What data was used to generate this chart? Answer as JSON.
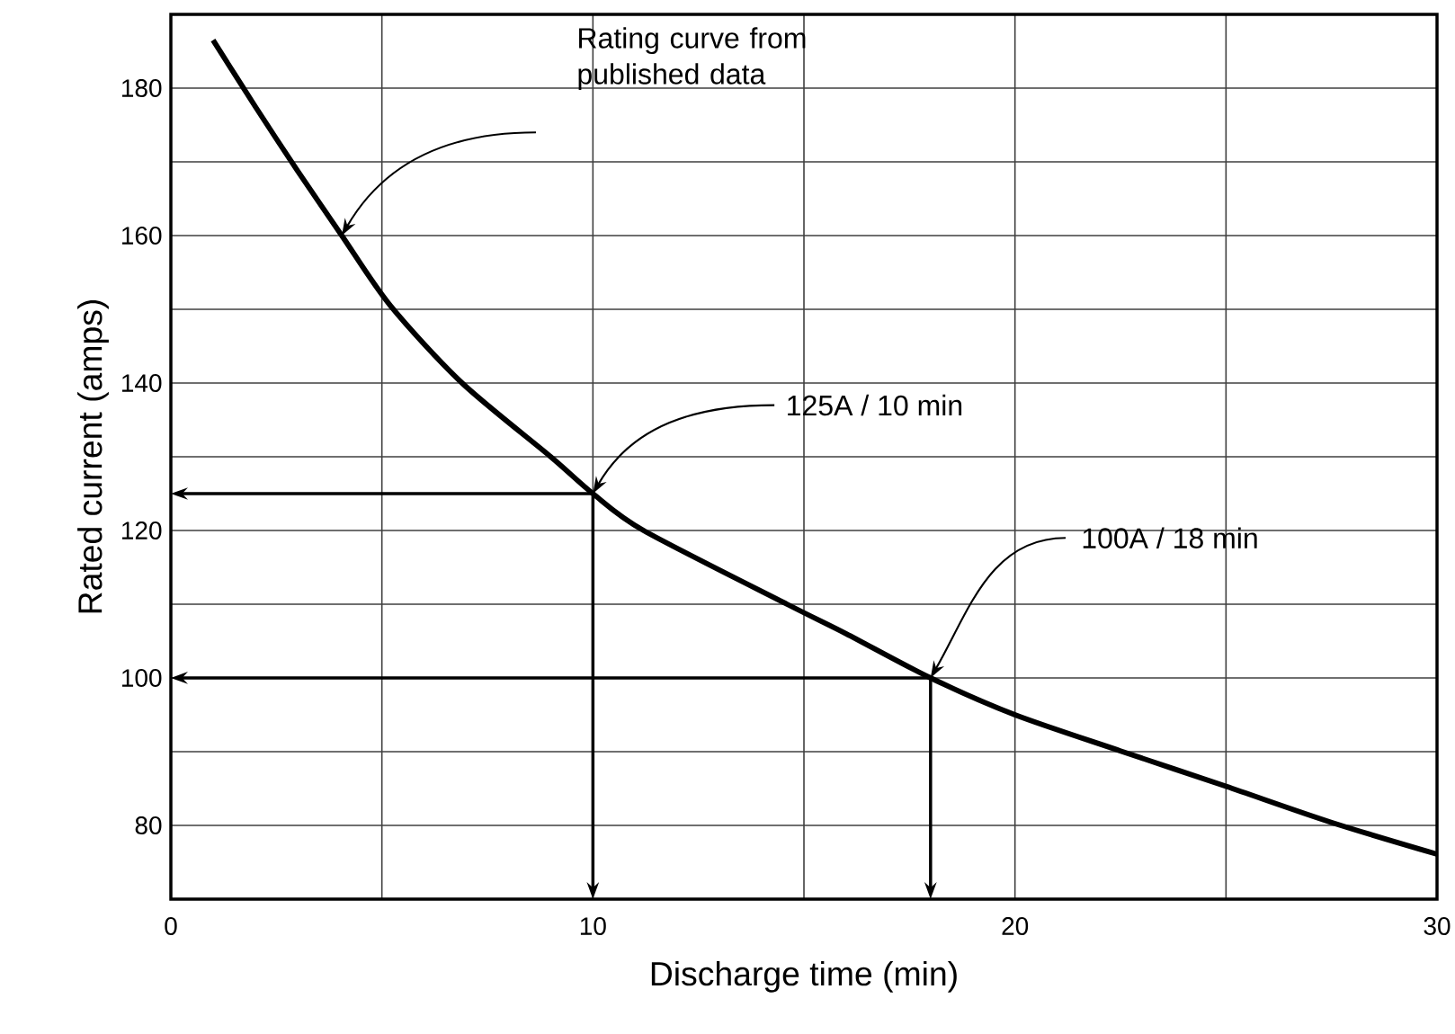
{
  "chart_data": {
    "type": "line",
    "xlabel": "Discharge time (min)",
    "ylabel": "Rated current (amps)",
    "x": [
      1,
      2,
      3,
      4.05,
      5.2,
      6.9,
      9.0,
      10,
      11.2,
      14.6,
      16,
      18,
      20,
      22.5,
      25,
      27.5,
      30
    ],
    "series": [
      {
        "color": "#000000",
        "values": [
          186.5,
          177.5,
          168.8,
          160,
          150.5,
          140,
          130,
          125,
          120,
          110,
          106,
          100,
          95,
          90.1,
          85.3,
          80.4,
          76.1
        ]
      }
    ],
    "xlim": [
      0,
      30
    ],
    "ylim": [
      70,
      190
    ],
    "xticks": [
      0,
      {
        "value": 5,
        "label": null
      },
      10,
      {
        "value": 15,
        "label": null
      },
      20,
      {
        "value": 25,
        "label": null
      },
      30
    ],
    "yticks": [
      {
        "value": 70,
        "label": null
      },
      80,
      {
        "value": 90,
        "label": null
      },
      100,
      {
        "value": 110,
        "label": null
      },
      120,
      {
        "value": 130,
        "label": null
      },
      140,
      {
        "value": 150,
        "label": null
      },
      160,
      {
        "value": 170,
        "label": null
      },
      180,
      {
        "value": 190,
        "label": null
      }
    ],
    "grid": true,
    "marker": "none",
    "line_style": "solid",
    "annotations": [
      "Rating curve from published data",
      {
        "text": "125A / 10 min",
        "x": 10,
        "y": 125
      },
      {
        "text": "100A / 18 min",
        "x": 18,
        "y": 100
      }
    ]
  }
}
